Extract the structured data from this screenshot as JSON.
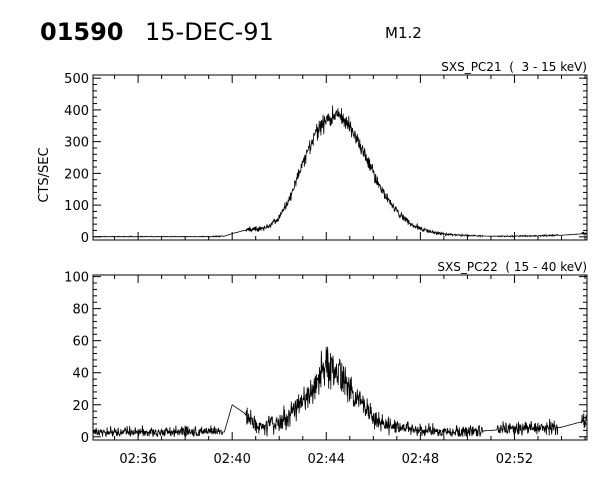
{
  "header": {
    "event_number": "01590",
    "date": "15-DEC-91",
    "goes_class": "M1.2"
  },
  "chart_data": [
    {
      "type": "line",
      "title": "SXS_PC21  (  3 - 15 keV)",
      "ylabel": "CTS/SEC",
      "xlabel": "",
      "xlim": [
        "02:34:05",
        "02:55:05"
      ],
      "ylim": [
        -10,
        510
      ],
      "y_ticks": [
        0,
        100,
        200,
        300,
        400,
        500
      ],
      "x_ticks": [
        "02:36",
        "02:40",
        "02:44",
        "02:48",
        "02:52"
      ],
      "x": [
        "02:34",
        "02:35",
        "02:36",
        "02:37",
        "02:38",
        "02:39",
        "02:39:40",
        "02:40",
        "02:40:30",
        "02:41",
        "02:41:30",
        "02:42",
        "02:42:30",
        "02:43",
        "02:43:30",
        "02:44",
        "02:44:30",
        "02:45",
        "02:45:30",
        "02:46",
        "02:46:30",
        "02:47",
        "02:47:30",
        "02:48",
        "02:48:30",
        "02:49",
        "02:50",
        "02:51",
        "02:52",
        "02:53",
        "02:54",
        "02:55"
      ],
      "series": [
        {
          "values": [
            0,
            0,
            0,
            0,
            0,
            0,
            2,
            10,
            20,
            25,
            30,
            60,
            130,
            230,
            320,
            370,
            385,
            350,
            280,
            200,
            130,
            80,
            45,
            25,
            15,
            8,
            4,
            2,
            2,
            3,
            5,
            10
          ]
        }
      ]
    },
    {
      "type": "line",
      "title": "SXS_PC22  ( 15 - 40 keV)",
      "ylabel": "",
      "xlabel": "",
      "xlim": [
        "02:34:05",
        "02:55:05"
      ],
      "ylim": [
        -2,
        101
      ],
      "y_ticks": [
        0,
        20,
        40,
        60,
        80,
        100
      ],
      "x_ticks": [
        "02:36",
        "02:40",
        "02:44",
        "02:48",
        "02:52"
      ],
      "x": [
        "02:34",
        "02:35",
        "02:36",
        "02:37",
        "02:38",
        "02:39",
        "02:39:40",
        "02:40",
        "02:40:30",
        "02:41",
        "02:41:30",
        "02:42",
        "02:42:30",
        "02:43",
        "02:43:30",
        "02:44",
        "02:44:30",
        "02:45",
        "02:45:30",
        "02:46",
        "02:46:30",
        "02:47",
        "02:47:30",
        "02:48",
        "02:48:30",
        "02:49",
        "02:50",
        "02:51",
        "02:52",
        "02:53",
        "02:54",
        "02:55"
      ],
      "series": [
        {
          "values": [
            3,
            3,
            3,
            3,
            3,
            3,
            3,
            20,
            15,
            6,
            6,
            10,
            14,
            22,
            30,
            45,
            40,
            30,
            20,
            12,
            8,
            6,
            5,
            4,
            4,
            3,
            3,
            4,
            5,
            5,
            6,
            10
          ]
        }
      ]
    }
  ]
}
